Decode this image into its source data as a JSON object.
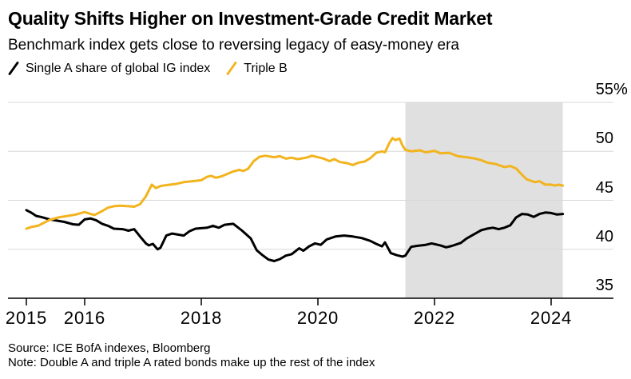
{
  "header": {
    "title": "Quality Shifts Higher on Investment-Grade Credit Market",
    "subtitle": "Benchmark index gets close to reversing legacy of easy-money era"
  },
  "legend": [
    {
      "label": "Single A share of global IG index",
      "color": "#000000"
    },
    {
      "label": "Triple B",
      "color": "#F2B41E"
    }
  ],
  "footer": {
    "source": "Source: ICE BofA indexes, Bloomberg",
    "note": "Note: Double A and triple A rated bonds make up the rest of the index"
  },
  "chart_data": {
    "type": "line",
    "title": "Quality Shifts Higher on Investment-Grade Credit Market",
    "subtitle": "Benchmark index gets close to reversing legacy of easy-money era",
    "unit": "%",
    "xlim": [
      2014.7,
      2024.4
    ],
    "ylim": [
      35,
      55
    ],
    "grid": "horizontal",
    "legend_position": "top-left",
    "y_ticks": [
      35,
      40,
      45,
      50,
      55
    ],
    "y_tick_labels": [
      "35",
      "40",
      "45",
      "50",
      "55%"
    ],
    "x_ticks": [
      2015,
      2016,
      2018,
      2020,
      2022,
      2024
    ],
    "x_tick_labels": [
      "2015",
      "2016",
      "2018",
      "2020",
      "2022",
      "2024"
    ],
    "colors": {
      "grid": "#D8D8D8",
      "axis": "#000000",
      "background": "#FFFFFF"
    },
    "shaded_region": {
      "from": 2021.5,
      "to": 2024.2,
      "color": "#E0E0E0"
    },
    "series": [
      {
        "id": "single-a",
        "name": "Single A share of global IG index",
        "color": "#000000",
        "x": [
          2015.0,
          2015.08,
          2015.17,
          2015.25,
          2015.4,
          2015.5,
          2015.65,
          2015.8,
          2015.9,
          2016.0,
          2016.1,
          2016.2,
          2016.3,
          2016.4,
          2016.5,
          2016.65,
          2016.75,
          2016.85,
          2016.95,
          2017.05,
          2017.1,
          2017.17,
          2017.25,
          2017.3,
          2017.4,
          2017.5,
          2017.6,
          2017.7,
          2017.8,
          2017.9,
          2018.0,
          2018.1,
          2018.2,
          2018.3,
          2018.4,
          2018.55,
          2018.7,
          2018.85,
          2018.95,
          2019.05,
          2019.15,
          2019.25,
          2019.35,
          2019.45,
          2019.55,
          2019.68,
          2019.75,
          2019.85,
          2019.95,
          2020.05,
          2020.15,
          2020.3,
          2020.45,
          2020.6,
          2020.75,
          2020.9,
          2021.0,
          2021.1,
          2021.15,
          2021.25,
          2021.35,
          2021.45,
          2021.5,
          2021.6,
          2021.7,
          2021.85,
          2021.95,
          2022.1,
          2022.2,
          2022.3,
          2022.45,
          2022.55,
          2022.7,
          2022.8,
          2022.9,
          2023.0,
          2023.1,
          2023.2,
          2023.3,
          2023.4,
          2023.5,
          2023.6,
          2023.7,
          2023.8,
          2023.9,
          2024.0,
          2024.1,
          2024.2
        ],
        "values": [
          44.0,
          43.75,
          43.4,
          43.3,
          43.05,
          42.95,
          42.8,
          42.55,
          42.5,
          43.05,
          43.15,
          42.95,
          42.6,
          42.4,
          42.1,
          42.05,
          41.9,
          42.05,
          41.3,
          40.6,
          40.4,
          40.55,
          40.0,
          40.15,
          41.4,
          41.6,
          41.5,
          41.4,
          41.85,
          42.1,
          42.15,
          42.2,
          42.4,
          42.2,
          42.5,
          42.6,
          41.9,
          41.1,
          39.9,
          39.4,
          38.95,
          38.8,
          39.0,
          39.35,
          39.5,
          40.1,
          39.85,
          40.3,
          40.6,
          40.45,
          41.0,
          41.3,
          41.4,
          41.3,
          41.15,
          40.85,
          40.55,
          40.3,
          40.7,
          39.6,
          39.4,
          39.25,
          39.35,
          40.25,
          40.35,
          40.45,
          40.6,
          40.4,
          40.2,
          40.35,
          40.65,
          41.1,
          41.6,
          41.95,
          42.1,
          42.2,
          42.05,
          42.2,
          42.45,
          43.25,
          43.6,
          43.55,
          43.3,
          43.6,
          43.75,
          43.7,
          43.55,
          43.6
        ]
      },
      {
        "id": "triple-b",
        "name": "Triple B",
        "color": "#F2B41E",
        "x": [
          2015.0,
          2015.1,
          2015.2,
          2015.3,
          2015.4,
          2015.55,
          2015.7,
          2015.85,
          2016.0,
          2016.1,
          2016.17,
          2016.3,
          2016.4,
          2016.5,
          2016.6,
          2016.75,
          2016.85,
          2016.95,
          2017.05,
          2017.15,
          2017.22,
          2017.3,
          2017.4,
          2017.55,
          2017.7,
          2017.85,
          2018.0,
          2018.1,
          2018.17,
          2018.25,
          2018.35,
          2018.45,
          2018.55,
          2018.65,
          2018.72,
          2018.8,
          2018.9,
          2019.0,
          2019.1,
          2019.25,
          2019.35,
          2019.45,
          2019.55,
          2019.65,
          2019.8,
          2019.9,
          2020.0,
          2020.1,
          2020.2,
          2020.28,
          2020.38,
          2020.5,
          2020.6,
          2020.7,
          2020.8,
          2020.9,
          2021.0,
          2021.1,
          2021.15,
          2021.22,
          2021.28,
          2021.33,
          2021.4,
          2021.45,
          2021.5,
          2021.6,
          2021.75,
          2021.85,
          2022.0,
          2022.1,
          2022.25,
          2022.4,
          2022.55,
          2022.7,
          2022.8,
          2022.9,
          2023.05,
          2023.2,
          2023.3,
          2023.4,
          2023.5,
          2023.58,
          2023.65,
          2023.72,
          2023.8,
          2023.9,
          2024.0,
          2024.07,
          2024.13,
          2024.2
        ],
        "values": [
          42.1,
          42.3,
          42.4,
          42.7,
          43.0,
          43.25,
          43.4,
          43.55,
          43.8,
          43.6,
          43.5,
          43.9,
          44.25,
          44.4,
          44.45,
          44.4,
          44.35,
          44.6,
          45.4,
          46.6,
          46.25,
          46.45,
          46.55,
          46.65,
          46.85,
          46.95,
          47.05,
          47.4,
          47.5,
          47.3,
          47.45,
          47.7,
          47.95,
          48.1,
          48.0,
          48.2,
          49.0,
          49.45,
          49.55,
          49.4,
          49.5,
          49.25,
          49.35,
          49.2,
          49.35,
          49.55,
          49.4,
          49.25,
          49.0,
          49.2,
          48.9,
          48.8,
          48.6,
          48.85,
          48.95,
          49.3,
          49.85,
          50.0,
          49.9,
          50.8,
          51.35,
          51.15,
          51.3,
          50.6,
          50.15,
          50.0,
          50.1,
          49.9,
          50.05,
          49.8,
          49.85,
          49.5,
          49.4,
          49.25,
          49.1,
          48.85,
          48.7,
          48.4,
          48.5,
          48.25,
          47.6,
          47.15,
          47.0,
          46.85,
          46.95,
          46.6,
          46.6,
          46.5,
          46.6,
          46.5
        ]
      }
    ]
  }
}
